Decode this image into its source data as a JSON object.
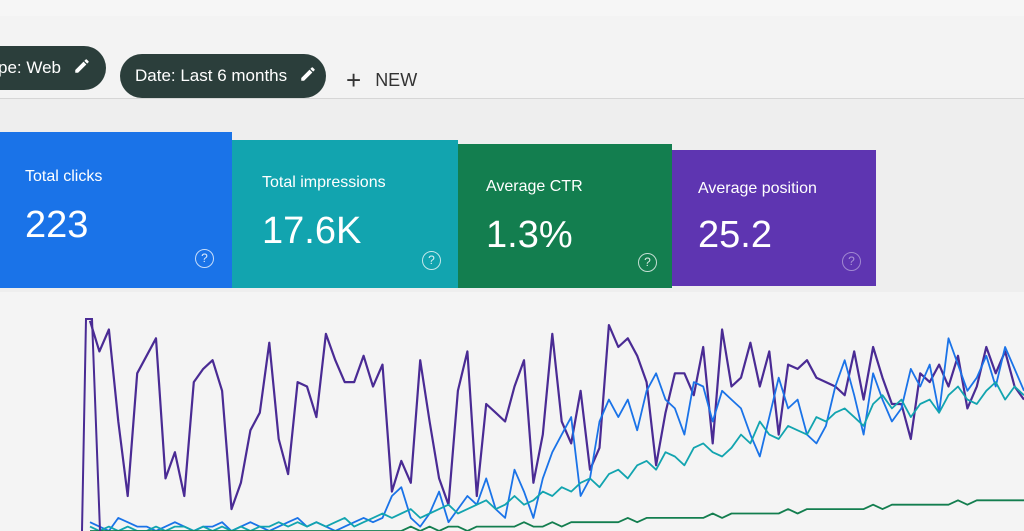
{
  "filters": {
    "type_chip": "pe: Web",
    "date_chip": "Date: Last 6 months",
    "new_label": "NEW"
  },
  "cards": [
    {
      "label": "Total clicks",
      "value": "223",
      "color": "#1a73e8"
    },
    {
      "label": "Total impressions",
      "value": "17.6K",
      "color": "#12a4af"
    },
    {
      "label": "Average CTR",
      "value": "1.3%",
      "color": "#137e4f"
    },
    {
      "label": "Average position",
      "value": "25.2",
      "color": "#5e35b1"
    }
  ],
  "icons": {
    "edit": "pencil-icon",
    "add": "plus-icon",
    "help": "help-circle-icon"
  },
  "chart_data": {
    "type": "line",
    "series": [
      {
        "color": "#4a2b94",
        "values": [
          48,
          41,
          46,
          25,
          8,
          36,
          40,
          44,
          12,
          18,
          8,
          34,
          37,
          39,
          32,
          5,
          11,
          23,
          27,
          43,
          21,
          13,
          34,
          33,
          26,
          45,
          39,
          34,
          34,
          40,
          33,
          38,
          9,
          16,
          11,
          39,
          25,
          12,
          6,
          32,
          41,
          8,
          29,
          27,
          25,
          33,
          39,
          11,
          22,
          45,
          25,
          20,
          32,
          14,
          19,
          47,
          42,
          44,
          40,
          34,
          15,
          27,
          36,
          36,
          31,
          42,
          20,
          46,
          33,
          35,
          43,
          33,
          41,
          22,
          38,
          37,
          39,
          35,
          34,
          33,
          31,
          41,
          30,
          42,
          35,
          29,
          29,
          21,
          36,
          34,
          38,
          33,
          40,
          28,
          33,
          42,
          36,
          41,
          33,
          30
        ]
      },
      {
        "color": "#1a73e8",
        "values": [
          2,
          1,
          0,
          3,
          2,
          1,
          1,
          0,
          1,
          2,
          1,
          0,
          1,
          1,
          2,
          0,
          1,
          2,
          1,
          0,
          1,
          2,
          3,
          1,
          2,
          1,
          0,
          1,
          2,
          3,
          2,
          3,
          8,
          10,
          3,
          1,
          4,
          9,
          2,
          5,
          8,
          6,
          12,
          5,
          3,
          14,
          9,
          3,
          12,
          18,
          22,
          26,
          8,
          12,
          25,
          30,
          26,
          30,
          23,
          32,
          36,
          30,
          28,
          22,
          34,
          33,
          25,
          32,
          30,
          28,
          22,
          17,
          26,
          35,
          28,
          30,
          22,
          20,
          24,
          33,
          39,
          31,
          22,
          36,
          30,
          25,
          28,
          37,
          33,
          38,
          27,
          44,
          38,
          32,
          35,
          40,
          33,
          42,
          37,
          32
        ]
      },
      {
        "color": "#12a4af",
        "values": [
          1,
          0,
          1,
          0,
          1,
          0,
          0,
          1,
          0,
          1,
          1,
          0,
          1,
          0,
          1,
          0,
          1,
          0,
          1,
          1,
          2,
          1,
          2,
          1,
          2,
          1,
          2,
          3,
          1,
          2,
          3,
          4,
          3,
          4,
          5,
          3,
          4,
          5,
          6,
          4,
          5,
          6,
          7,
          5,
          6,
          8,
          6,
          7,
          9,
          8,
          10,
          9,
          11,
          12,
          10,
          13,
          14,
          12,
          15,
          16,
          14,
          18,
          17,
          15,
          19,
          20,
          18,
          17,
          19,
          22,
          20,
          25,
          22,
          21,
          24,
          23,
          22,
          26,
          25,
          27,
          28,
          26,
          24,
          29,
          31,
          28,
          30,
          26,
          29,
          30,
          27,
          31,
          33,
          30,
          29,
          32,
          34,
          30,
          33,
          31
        ]
      },
      {
        "color": "#137e4f",
        "values": [
          0,
          0,
          0,
          0,
          0,
          0,
          0,
          0,
          0,
          0,
          0,
          0,
          0,
          0,
          0,
          0,
          0,
          0,
          0,
          0,
          0,
          0,
          0,
          0,
          0,
          0,
          0,
          0,
          0,
          0,
          0,
          0,
          0,
          0,
          1,
          0,
          1,
          0,
          1,
          1,
          0,
          1,
          1,
          1,
          1,
          1,
          2,
          1,
          1,
          2,
          1,
          2,
          2,
          2,
          2,
          2,
          2,
          3,
          2,
          3,
          3,
          3,
          3,
          3,
          3,
          3,
          4,
          3,
          4,
          4,
          4,
          4,
          4,
          4,
          5,
          4,
          5,
          5,
          5,
          5,
          5,
          5,
          5,
          6,
          5,
          6,
          6,
          6,
          6,
          6,
          6,
          6,
          7,
          6,
          7,
          7,
          7,
          7,
          7,
          7
        ]
      }
    ]
  }
}
